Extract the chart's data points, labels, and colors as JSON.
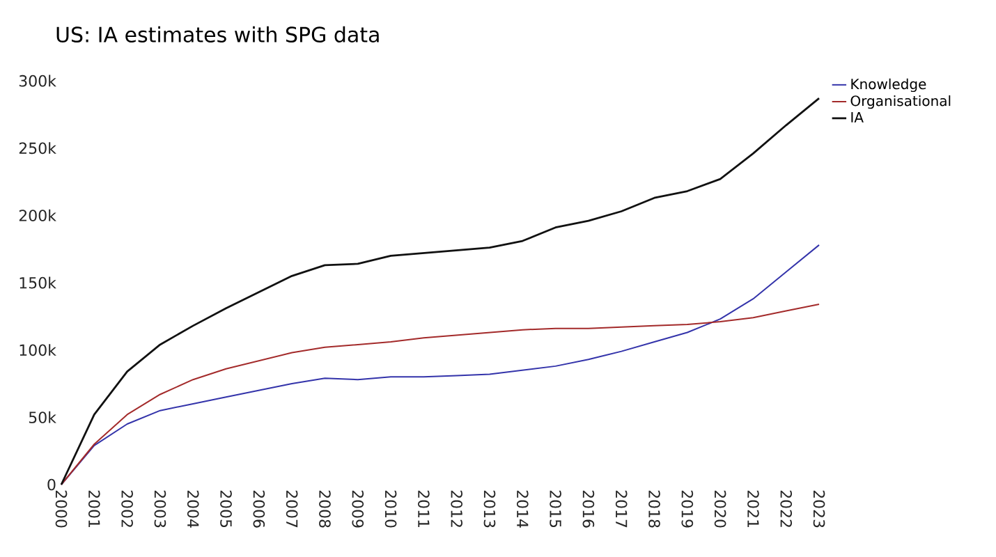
{
  "chart_data": {
    "type": "line",
    "title": "US: IA estimates with SPG data",
    "categories": [
      "2000",
      "2001",
      "2002",
      "2003",
      "2004",
      "2005",
      "2006",
      "2007",
      "2008",
      "2009",
      "2010",
      "2011",
      "2012",
      "2013",
      "2014",
      "2015",
      "2016",
      "2017",
      "2018",
      "2019",
      "2020",
      "2021",
      "2022",
      "2023"
    ],
    "series": [
      {
        "name": "Knowledge",
        "color": "#3333aa",
        "values": [
          0,
          29000,
          45000,
          55000,
          60000,
          65000,
          70000,
          75000,
          79000,
          78000,
          80000,
          80000,
          81000,
          82000,
          85000,
          88000,
          93000,
          99000,
          106000,
          113000,
          123000,
          138000,
          158000,
          178000
        ]
      },
      {
        "name": "Organisational",
        "color": "#a32a2a",
        "values": [
          0,
          30000,
          52000,
          67000,
          78000,
          86000,
          92000,
          98000,
          102000,
          104000,
          106000,
          109000,
          111000,
          113000,
          115000,
          116000,
          116000,
          117000,
          118000,
          119000,
          121000,
          124000,
          129000,
          134000
        ]
      },
      {
        "name": "IA",
        "color": "#111111",
        "values": [
          0,
          52000,
          84000,
          104000,
          118000,
          131000,
          143000,
          155000,
          163000,
          164000,
          170000,
          172000,
          174000,
          176000,
          181000,
          191000,
          196000,
          203000,
          213000,
          218000,
          227000,
          246000,
          267000,
          287000
        ]
      }
    ],
    "ylim": [
      0,
      300000
    ],
    "yticks": [
      0,
      {
        "value": 50000,
        "label": "50k"
      },
      {
        "value": 100000,
        "label": "100k"
      },
      {
        "value": 150000,
        "label": "150k"
      },
      {
        "value": 200000,
        "label": "200k"
      },
      {
        "value": 250000,
        "label": "250k"
      },
      {
        "value": 300000,
        "label": "300k"
      }
    ],
    "grid": false,
    "legend": "right",
    "marker": "none",
    "line_style": "solid"
  }
}
